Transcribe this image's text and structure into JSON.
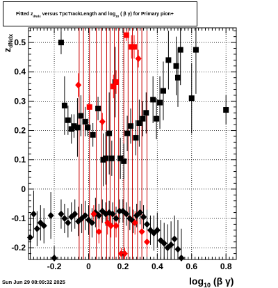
{
  "title": {
    "prefix": "Fitted  z",
    "sub1": "dNdx",
    "middle": "  versus TpcTrackLength and log",
    "sub2": "10",
    "suffix": " ( β γ) for Primary pion+"
  },
  "timestamp": "Sun Jun 29 08:09:32 2025",
  "colors": {
    "black_series": "#000000",
    "red_series": "#ff0000",
    "red_lines": "#cc0000",
    "grid": "#000000"
  },
  "chart_data": {
    "type": "scatter",
    "title": "Fitted z_dNdx versus TpcTrackLength and log10 ( β γ) for Primary pion+",
    "xlabel": "log10 (β γ)",
    "ylabel": "z_dNdx",
    "xlim": [
      -0.35,
      0.86
    ],
    "ylim": [
      -0.24,
      0.55
    ],
    "x_ticks": [
      -0.2,
      0,
      0.2,
      0.4,
      0.6,
      0.8
    ],
    "x_tick_labels": [
      "-0.2",
      "0",
      "0.2",
      "0.4",
      "0.6",
      "0.8"
    ],
    "y_ticks": [
      -0.2,
      -0.1,
      0,
      0.1,
      0.2,
      0.3,
      0.4,
      0.5
    ],
    "y_tick_labels": [
      "-0.2",
      "-0.1",
      "0",
      "0.1",
      "0.2",
      "0.3",
      "0.4",
      "0.5"
    ],
    "grid": true,
    "red_vertical_lines_x": [
      -0.055,
      -0.03,
      0.005,
      0.045,
      0.075,
      0.105,
      0.125,
      0.15,
      0.175,
      0.205,
      0.23,
      0.255,
      0.285,
      0.31,
      0.34
    ],
    "series": [
      {
        "marker": "square",
        "color": "#000000",
        "points": [
          {
            "x": -0.16,
            "y": 0.5,
            "err": 0.04
          },
          {
            "x": -0.14,
            "y": 0.285,
            "err": 0.1
          },
          {
            "x": -0.12,
            "y": 0.235,
            "err": 0.05
          },
          {
            "x": -0.1,
            "y": 0.205,
            "err": 0.05
          },
          {
            "x": -0.085,
            "y": 0.215,
            "err": 0.04
          },
          {
            "x": -0.065,
            "y": 0.21,
            "err": 0.1
          },
          {
            "x": -0.045,
            "y": 0.25,
            "err": 0.07
          },
          {
            "x": -0.02,
            "y": 0.23,
            "err": 0.05
          },
          {
            "x": -0.005,
            "y": 0.21,
            "err": 0.03
          },
          {
            "x": 0.025,
            "y": 0.185,
            "err": 0.04
          },
          {
            "x": 0.055,
            "y": 0.275,
            "err": 0.04
          },
          {
            "x": 0.085,
            "y": 0.1,
            "err": 0.09
          },
          {
            "x": 0.1,
            "y": 0.105,
            "err": 0.09
          },
          {
            "x": 0.12,
            "y": 0.19,
            "err": 0.14
          },
          {
            "x": 0.135,
            "y": 0.105,
            "err": 0.06
          },
          {
            "x": 0.155,
            "y": 0.365,
            "err": 0.12
          },
          {
            "x": 0.185,
            "y": 0.105,
            "err": 0.07
          },
          {
            "x": 0.205,
            "y": 0.095,
            "err": 0.06
          },
          {
            "x": 0.225,
            "y": 0.19,
            "err": 0.06
          },
          {
            "x": 0.245,
            "y": 0.215,
            "err": 0.06
          },
          {
            "x": 0.275,
            "y": 0.175,
            "err": 0.06
          },
          {
            "x": 0.295,
            "y": 0.225,
            "err": 0.08
          },
          {
            "x": 0.315,
            "y": 0.24,
            "err": 0.06
          },
          {
            "x": 0.335,
            "y": 0.26,
            "err": 0.07
          },
          {
            "x": 0.375,
            "y": 0.305,
            "err": 0.08
          },
          {
            "x": 0.395,
            "y": 0.24,
            "err": 0.07
          },
          {
            "x": 0.415,
            "y": 0.295,
            "err": 0.09
          },
          {
            "x": 0.435,
            "y": 0.335,
            "err": 0.1
          },
          {
            "x": 0.465,
            "y": 0.44,
            "err": 0.1
          },
          {
            "x": 0.51,
            "y": 0.42,
            "err": 0.1
          },
          {
            "x": 0.535,
            "y": 0.475,
            "err": 0.12
          },
          {
            "x": 0.52,
            "y": 0.38,
            "err": 0.1
          },
          {
            "x": 0.6,
            "y": 0.31,
            "err": 0.12
          },
          {
            "x": 0.625,
            "y": 0.475,
            "err": 0.15
          },
          {
            "x": 0.8,
            "y": 0.27,
            "err": 0.05
          }
        ]
      },
      {
        "marker": "square",
        "color": "#ff0000",
        "points": [
          {
            "x": 0.005,
            "y": 0.28,
            "err": 0.04
          },
          {
            "x": 0.145,
            "y": 0.35,
            "err": 0.04
          },
          {
            "x": 0.16,
            "y": 0.365,
            "err": 0.04
          },
          {
            "x": 0.22,
            "y": 0.525,
            "err": 0.02
          },
          {
            "x": 0.25,
            "y": 0.485,
            "err": 0.04
          },
          {
            "x": 0.265,
            "y": 0.485,
            "err": 0.04
          }
        ]
      },
      {
        "marker": "diamond",
        "color": "#000000",
        "points": [
          {
            "x": -0.34,
            "y": -0.165,
            "err": 0.08
          },
          {
            "x": -0.32,
            "y": -0.085,
            "err": 0.08
          },
          {
            "x": -0.3,
            "y": -0.135,
            "err": 0.06
          },
          {
            "x": -0.28,
            "y": -0.115,
            "err": 0.06
          },
          {
            "x": -0.26,
            "y": -0.125,
            "err": 0.06
          },
          {
            "x": -0.22,
            "y": -0.09,
            "err": 0.08
          },
          {
            "x": -0.2,
            "y": -0.235,
            "err": 0.04
          },
          {
            "x": -0.16,
            "y": -0.085,
            "err": 0.05
          },
          {
            "x": -0.14,
            "y": -0.1,
            "err": 0.05
          },
          {
            "x": -0.12,
            "y": -0.115,
            "err": 0.05
          },
          {
            "x": -0.1,
            "y": -0.095,
            "err": 0.05
          },
          {
            "x": -0.08,
            "y": -0.085,
            "err": 0.05
          },
          {
            "x": -0.06,
            "y": -0.11,
            "err": 0.05
          },
          {
            "x": -0.04,
            "y": -0.1,
            "err": 0.05
          },
          {
            "x": -0.02,
            "y": -0.09,
            "err": 0.05
          },
          {
            "x": 0.0,
            "y": -0.105,
            "err": 0.05
          },
          {
            "x": 0.02,
            "y": -0.115,
            "err": 0.05
          },
          {
            "x": 0.04,
            "y": -0.08,
            "err": 0.05
          },
          {
            "x": 0.06,
            "y": -0.09,
            "err": 0.04
          },
          {
            "x": 0.08,
            "y": -0.075,
            "err": 0.04
          },
          {
            "x": 0.1,
            "y": -0.085,
            "err": 0.04
          },
          {
            "x": 0.12,
            "y": -0.08,
            "err": 0.04
          },
          {
            "x": 0.14,
            "y": -0.085,
            "err": 0.04
          },
          {
            "x": 0.16,
            "y": -0.1,
            "err": 0.04
          },
          {
            "x": 0.18,
            "y": -0.075,
            "err": 0.04
          },
          {
            "x": 0.2,
            "y": -0.075,
            "err": 0.04
          },
          {
            "x": 0.22,
            "y": -0.085,
            "err": 0.04
          },
          {
            "x": 0.24,
            "y": -0.1,
            "err": 0.04
          },
          {
            "x": 0.26,
            "y": -0.11,
            "err": 0.04
          },
          {
            "x": 0.28,
            "y": -0.09,
            "err": 0.04
          },
          {
            "x": 0.3,
            "y": -0.08,
            "err": 0.04
          },
          {
            "x": 0.32,
            "y": -0.095,
            "err": 0.04
          },
          {
            "x": 0.34,
            "y": -0.12,
            "err": 0.05
          },
          {
            "x": 0.36,
            "y": -0.14,
            "err": 0.05
          },
          {
            "x": 0.38,
            "y": -0.15,
            "err": 0.06
          },
          {
            "x": 0.4,
            "y": -0.14,
            "err": 0.06
          },
          {
            "x": 0.42,
            "y": -0.175,
            "err": 0.07
          },
          {
            "x": 0.44,
            "y": -0.185,
            "err": 0.07
          },
          {
            "x": 0.46,
            "y": -0.2,
            "err": 0.08
          },
          {
            "x": 0.48,
            "y": -0.19,
            "err": 0.08
          },
          {
            "x": 0.5,
            "y": -0.17,
            "err": 0.08
          },
          {
            "x": 0.52,
            "y": -0.205,
            "err": 0.1
          },
          {
            "x": 0.54,
            "y": -0.235,
            "err": 0.1
          }
        ]
      },
      {
        "marker": "diamond",
        "color": "#ff0000",
        "points": [
          {
            "x": -0.06,
            "y": 0.355,
            "err": 0.04
          },
          {
            "x": 0.03,
            "y": -0.085,
            "err": 0.03
          },
          {
            "x": 0.06,
            "y": -0.145,
            "err": 0.04
          },
          {
            "x": 0.08,
            "y": 0.23,
            "err": 0.03
          },
          {
            "x": 0.11,
            "y": -0.115,
            "err": 0.04
          },
          {
            "x": 0.13,
            "y": -0.125,
            "err": 0.04
          },
          {
            "x": 0.16,
            "y": -0.125,
            "err": 0.04
          },
          {
            "x": 0.19,
            "y": -0.22,
            "err": 0.02
          },
          {
            "x": 0.21,
            "y": -0.22,
            "err": 0.02
          },
          {
            "x": 0.27,
            "y": -0.115,
            "err": 0.04
          },
          {
            "x": 0.29,
            "y": 0.445,
            "err": 0.03
          },
          {
            "x": 0.31,
            "y": -0.145,
            "err": 0.04
          },
          {
            "x": 0.34,
            "y": -0.18,
            "err": 0.04
          }
        ]
      }
    ]
  }
}
